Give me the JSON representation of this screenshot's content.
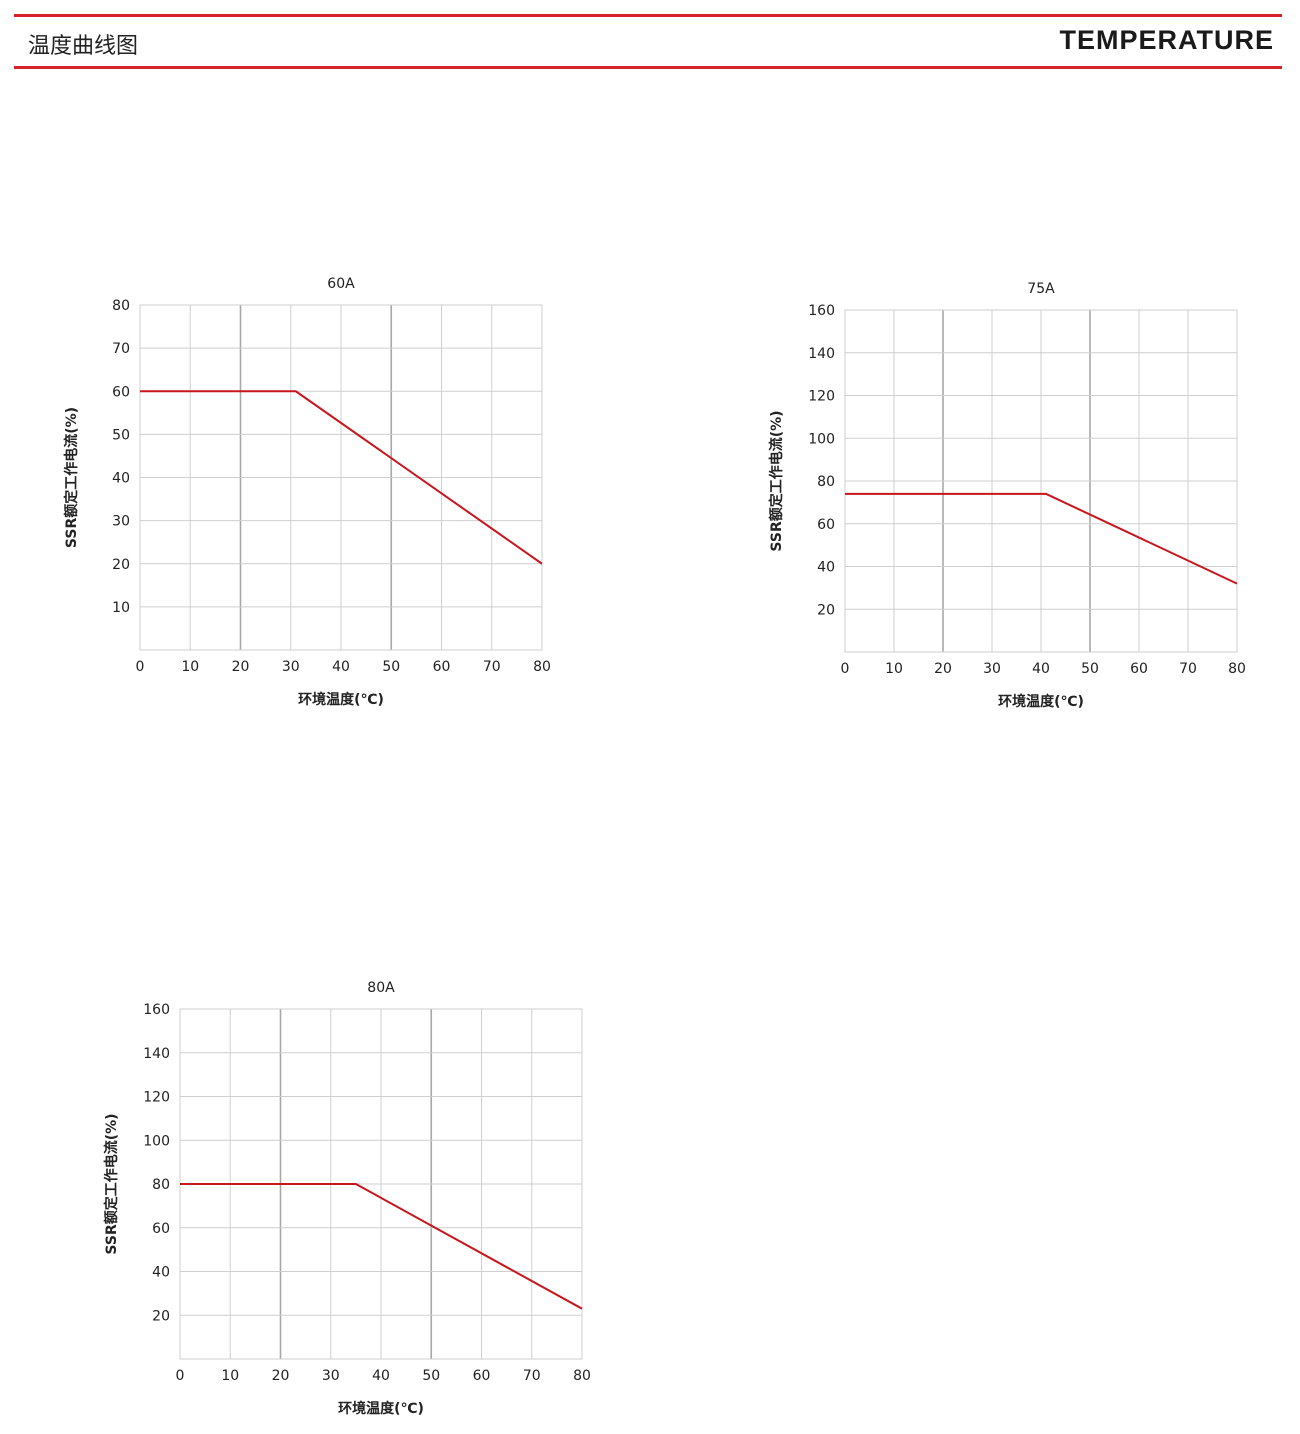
{
  "header": {
    "title_cn": "温度曲线图",
    "title_en": "TEMPERATURE",
    "accent_color": "#d6222a"
  },
  "line_color": "#c8161d",
  "chart_data": [
    {
      "type": "line",
      "title": "60A",
      "xlabel": "环境温度(℃)",
      "ylabel": "SSR额定工作电流(%)",
      "xlim": [
        0,
        80
      ],
      "ylim": [
        0,
        80
      ],
      "xticks": [
        0,
        10,
        20,
        30,
        40,
        50,
        60,
        70,
        80
      ],
      "yticks": [
        10,
        20,
        30,
        40,
        50,
        60,
        70,
        80
      ],
      "grid": true,
      "series": [
        {
          "x": [
            0,
            31,
            80
          ],
          "y": [
            60,
            60,
            20
          ]
        }
      ]
    },
    {
      "type": "line",
      "title": "75A",
      "xlabel": "环境温度(℃)",
      "ylabel": "SSR额定工作电流(%)",
      "xlim": [
        0,
        80
      ],
      "ylim": [
        0,
        160
      ],
      "xticks": [
        0,
        10,
        20,
        30,
        40,
        50,
        60,
        70,
        80
      ],
      "yticks": [
        20,
        40,
        60,
        80,
        100,
        120,
        140,
        160
      ],
      "grid": true,
      "series": [
        {
          "x": [
            0,
            41,
            80
          ],
          "y": [
            74,
            74,
            32
          ]
        }
      ]
    },
    {
      "type": "line",
      "title": "80A",
      "xlabel": "环境温度(℃)",
      "ylabel": "SSR额定工作电流(%)",
      "xlim": [
        0,
        80
      ],
      "ylim": [
        0,
        160
      ],
      "xticks": [
        0,
        10,
        20,
        30,
        40,
        50,
        60,
        70,
        80
      ],
      "yticks": [
        20,
        40,
        60,
        80,
        100,
        120,
        140,
        160
      ],
      "grid": true,
      "series": [
        {
          "x": [
            0,
            35,
            80
          ],
          "y": [
            80,
            80,
            23
          ]
        }
      ]
    }
  ]
}
